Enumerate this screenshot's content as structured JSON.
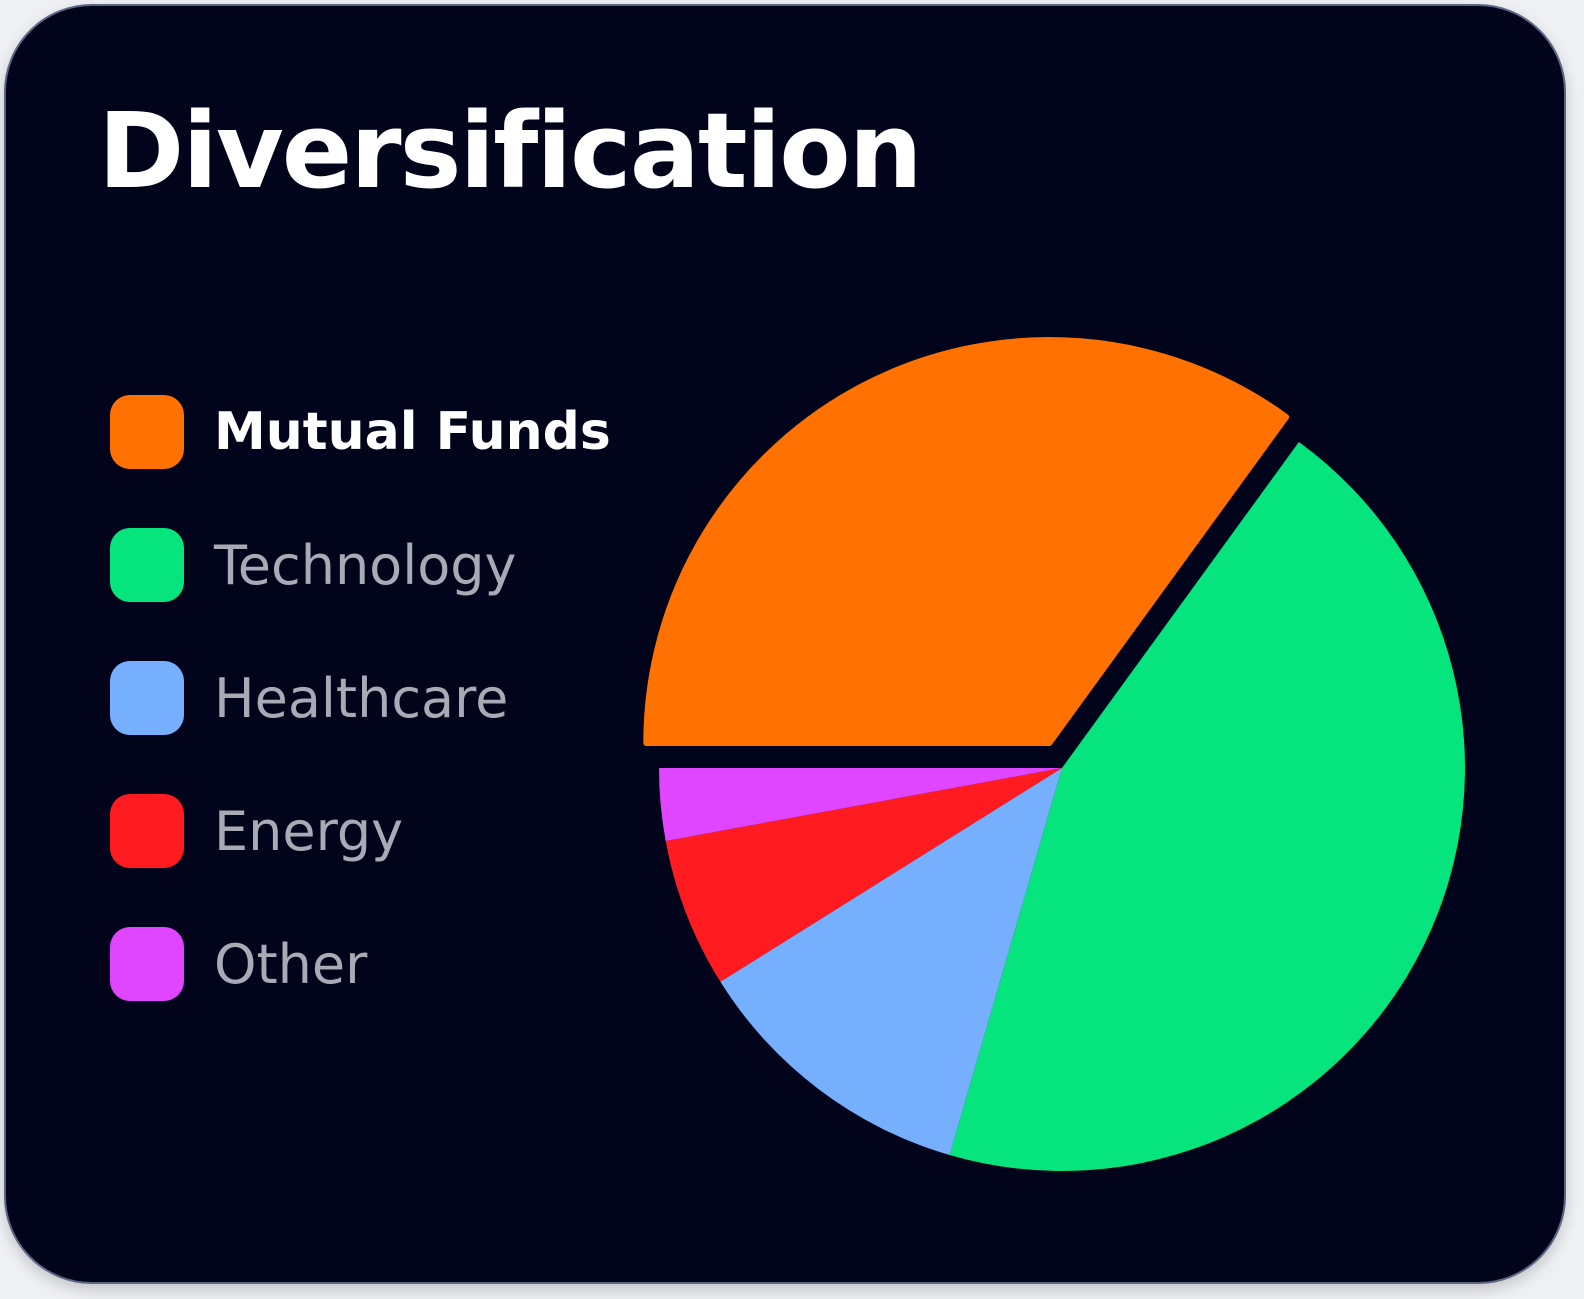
{
  "chart_data": {
    "type": "pie",
    "title": "Diversification",
    "legend_placement": "left",
    "selected": "Mutual Funds",
    "slices": [
      {
        "label": "Mutual Funds",
        "value": 35.0,
        "color": "#ff7100",
        "exploded": true
      },
      {
        "label": "Technology",
        "value": 44.5,
        "color": "#06e57d",
        "exploded": false
      },
      {
        "label": "Healthcare",
        "value": 11.6,
        "color": "#77afff",
        "exploded": false
      },
      {
        "label": "Energy",
        "value": 6.0,
        "color": "#ff1b1f",
        "exploded": false
      },
      {
        "label": "Other",
        "value": 2.9,
        "color": "#e045ff",
        "exploded": false
      }
    ]
  }
}
